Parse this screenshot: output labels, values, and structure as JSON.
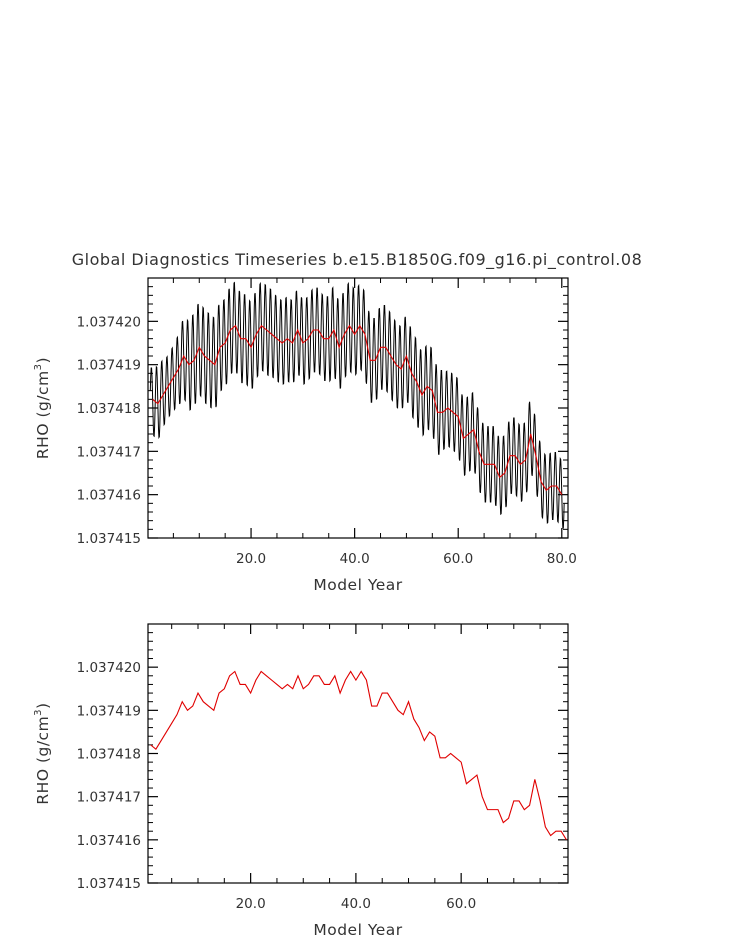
{
  "title": "Global Diagnostics Timeseries b.e15.B1850G.f09_g16.pi_control.08",
  "colors": {
    "monthly": "#000000",
    "annual": "#e00000",
    "axis": "#000000",
    "text": "#333333"
  },
  "chart_data": [
    {
      "type": "line",
      "title": "Global Diagnostics Timeseries b.e15.B1850G.f09_g16.pi_control.08",
      "xlabel": "Model Year",
      "ylabel": "RHO (g/cm³)",
      "ylabel_parts": {
        "main": "RHO (g/cm",
        "sup": "3",
        "close": ")"
      },
      "xlim": [
        0.1,
        81.2
      ],
      "ylim": [
        1.037415,
        1.037421
      ],
      "x_ticks": [
        20,
        40,
        60,
        80
      ],
      "x_tick_labels": [
        "20.0",
        "40.0",
        "60.0",
        "80.0"
      ],
      "y_ticks": [
        1.037415,
        1.037416,
        1.037417,
        1.037418,
        1.037419,
        1.03742
      ],
      "y_tick_labels": [
        "1.037415",
        "1.037416",
        "1.037417",
        "1.037418",
        "1.037419",
        "1.037420"
      ],
      "grid": false,
      "monthly_amplitude": [
        0.75,
        0.85,
        0.85,
        0.75,
        0.75,
        0.8,
        0.9,
        1.0,
        1.1,
        1.1,
        1.1,
        1.1,
        1.1,
        1.1,
        1.05,
        1.05,
        1.05,
        1.05,
        1.05,
        1.05,
        1.05,
        1.05,
        1.05,
        1.05,
        1.0,
        1.0,
        1.0,
        1.0,
        1.0,
        1.0,
        1.0,
        1.0,
        1.0,
        1.0,
        1.0,
        1.05,
        1.05,
        1.05,
        1.05,
        1.05,
        1.0,
        1.0,
        1.0,
        1.0,
        1.0,
        1.0,
        1.0,
        1.0,
        1.0,
        1.0,
        1.0,
        1.0,
        1.0,
        1.0,
        1.0,
        1.0,
        1.0,
        0.9,
        0.9,
        0.9,
        0.9,
        0.9,
        0.9,
        0.9,
        0.9,
        0.9,
        0.9,
        0.9,
        0.9,
        0.9,
        0.9,
        0.9,
        0.9,
        0.9,
        0.85,
        0.8,
        0.8,
        0.8,
        0.8,
        0.8
      ],
      "series": [
        {
          "role": "monthly"
        },
        {
          "role": "annual",
          "x": [
            1,
            2,
            3,
            4,
            5,
            6,
            7,
            8,
            9,
            10,
            11,
            12,
            13,
            14,
            15,
            16,
            17,
            18,
            19,
            20,
            21,
            22,
            23,
            24,
            25,
            26,
            27,
            28,
            29,
            30,
            31,
            32,
            33,
            34,
            35,
            36,
            37,
            38,
            39,
            40,
            41,
            42,
            43,
            44,
            45,
            46,
            47,
            48,
            49,
            50,
            51,
            52,
            53,
            54,
            55,
            56,
            57,
            58,
            59,
            60,
            61,
            62,
            63,
            64,
            65,
            66,
            67,
            68,
            69,
            70,
            71,
            72,
            73,
            74,
            75,
            76,
            77,
            78,
            79,
            80
          ],
          "values": [
            1.0374182,
            1.0374181,
            1.0374183,
            1.0374185,
            1.0374187,
            1.0374189,
            1.0374192,
            1.037419,
            1.0374191,
            1.0374194,
            1.0374192,
            1.0374191,
            1.037419,
            1.0374194,
            1.0374195,
            1.0374198,
            1.0374199,
            1.0374196,
            1.0374196,
            1.0374194,
            1.0374197,
            1.0374199,
            1.0374198,
            1.0374197,
            1.0374196,
            1.0374195,
            1.0374196,
            1.0374195,
            1.0374198,
            1.0374195,
            1.0374196,
            1.0374198,
            1.0374198,
            1.0374196,
            1.0374196,
            1.0374198,
            1.0374194,
            1.0374197,
            1.0374199,
            1.0374197,
            1.0374199,
            1.0374197,
            1.0374191,
            1.0374191,
            1.0374194,
            1.0374194,
            1.0374192,
            1.037419,
            1.0374189,
            1.0374192,
            1.0374188,
            1.0374186,
            1.0374183,
            1.0374185,
            1.0374184,
            1.0374179,
            1.0374179,
            1.037418,
            1.0374179,
            1.0374178,
            1.0374173,
            1.0374174,
            1.0374175,
            1.037417,
            1.0374167,
            1.0374167,
            1.0374167,
            1.0374164,
            1.0374165,
            1.0374169,
            1.0374169,
            1.0374167,
            1.0374168,
            1.0374174,
            1.0374169,
            1.0374163,
            1.0374161,
            1.0374162,
            1.0374162,
            1.037416
          ]
        }
      ]
    },
    {
      "type": "line",
      "xlabel": "Model Year",
      "ylabel": "RHO (g/cm³)",
      "ylabel_parts": {
        "main": "RHO (g/cm",
        "sup": "3",
        "close": ")"
      },
      "xlim": [
        0.5,
        80.3
      ],
      "ylim": [
        1.037415,
        1.037421
      ],
      "x_ticks": [
        20,
        40,
        60
      ],
      "x_tick_labels": [
        "20.0",
        "40.0",
        "60.0"
      ],
      "y_ticks": [
        1.037415,
        1.037416,
        1.037417,
        1.037418,
        1.037419,
        1.03742
      ],
      "y_tick_labels": [
        "1.037415",
        "1.037416",
        "1.037417",
        "1.037418",
        "1.037419",
        "1.037420"
      ],
      "grid": false,
      "series": [
        {
          "role": "annual",
          "x": [
            1,
            2,
            3,
            4,
            5,
            6,
            7,
            8,
            9,
            10,
            11,
            12,
            13,
            14,
            15,
            16,
            17,
            18,
            19,
            20,
            21,
            22,
            23,
            24,
            25,
            26,
            27,
            28,
            29,
            30,
            31,
            32,
            33,
            34,
            35,
            36,
            37,
            38,
            39,
            40,
            41,
            42,
            43,
            44,
            45,
            46,
            47,
            48,
            49,
            50,
            51,
            52,
            53,
            54,
            55,
            56,
            57,
            58,
            59,
            60,
            61,
            62,
            63,
            64,
            65,
            66,
            67,
            68,
            69,
            70,
            71,
            72,
            73,
            74,
            75,
            76,
            77,
            78,
            79,
            80
          ],
          "values": [
            1.0374182,
            1.0374181,
            1.0374183,
            1.0374185,
            1.0374187,
            1.0374189,
            1.0374192,
            1.037419,
            1.0374191,
            1.0374194,
            1.0374192,
            1.0374191,
            1.037419,
            1.0374194,
            1.0374195,
            1.0374198,
            1.0374199,
            1.0374196,
            1.0374196,
            1.0374194,
            1.0374197,
            1.0374199,
            1.0374198,
            1.0374197,
            1.0374196,
            1.0374195,
            1.0374196,
            1.0374195,
            1.0374198,
            1.0374195,
            1.0374196,
            1.0374198,
            1.0374198,
            1.0374196,
            1.0374196,
            1.0374198,
            1.0374194,
            1.0374197,
            1.0374199,
            1.0374197,
            1.0374199,
            1.0374197,
            1.0374191,
            1.0374191,
            1.0374194,
            1.0374194,
            1.0374192,
            1.037419,
            1.0374189,
            1.0374192,
            1.0374188,
            1.0374186,
            1.0374183,
            1.0374185,
            1.0374184,
            1.0374179,
            1.0374179,
            1.037418,
            1.0374179,
            1.0374178,
            1.0374173,
            1.0374174,
            1.0374175,
            1.037417,
            1.0374167,
            1.0374167,
            1.0374167,
            1.0374164,
            1.0374165,
            1.0374169,
            1.0374169,
            1.0374167,
            1.0374168,
            1.0374174,
            1.0374169,
            1.0374163,
            1.0374161,
            1.0374162,
            1.0374162,
            1.037416
          ]
        }
      ]
    }
  ]
}
